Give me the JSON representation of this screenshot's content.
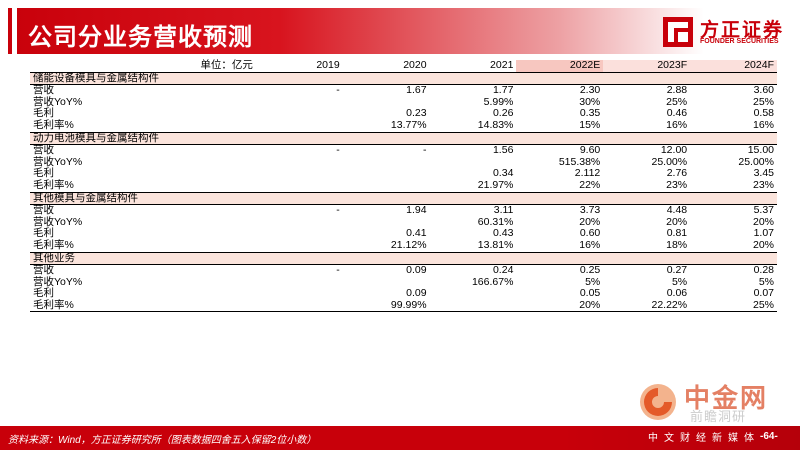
{
  "header": {
    "title": "公司分业务营收预测",
    "logo_cn": "方正证券",
    "logo_en": "FOUNDER SECURITIES",
    "brand_color": "#c8000a"
  },
  "table": {
    "unit_label": "单位：亿元",
    "years": [
      "2019",
      "2020",
      "2021",
      "2022E",
      "2023F",
      "2024F"
    ],
    "sections": [
      {
        "name": "储能设备模具与金属结构件",
        "rows": [
          {
            "label": "营收",
            "values": [
              "-",
              "1.67",
              "1.77",
              "2.30",
              "2.88",
              "3.60"
            ]
          },
          {
            "label": "营收YoY%",
            "values": [
              "",
              "",
              "5.99%",
              "30%",
              "25%",
              "25%"
            ]
          },
          {
            "label": "毛利",
            "values": [
              "",
              "0.23",
              "0.26",
              "0.35",
              "0.46",
              "0.58"
            ]
          },
          {
            "label": "毛利率%",
            "values": [
              "",
              "13.77%",
              "14.83%",
              "15%",
              "16%",
              "16%"
            ]
          }
        ]
      },
      {
        "name": "动力电池模具与金属结构件",
        "rows": [
          {
            "label": "营收",
            "values": [
              "-",
              "-",
              "1.56",
              "9.60",
              "12.00",
              "15.00"
            ]
          },
          {
            "label": "营收YoY%",
            "values": [
              "",
              "",
              "",
              "515.38%",
              "25.00%",
              "25.00%"
            ]
          },
          {
            "label": "毛利",
            "values": [
              "",
              "",
              "0.34",
              "2.112",
              "2.76",
              "3.45"
            ]
          },
          {
            "label": "毛利率%",
            "values": [
              "",
              "",
              "21.97%",
              "22%",
              "23%",
              "23%"
            ]
          }
        ]
      },
      {
        "name": "其他模具与金属结构件",
        "rows": [
          {
            "label": "营收",
            "values": [
              "-",
              "1.94",
              "3.11",
              "3.73",
              "4.48",
              "5.37"
            ]
          },
          {
            "label": "营收YoY%",
            "values": [
              "",
              "",
              "60.31%",
              "20%",
              "20%",
              "20%"
            ]
          },
          {
            "label": "毛利",
            "values": [
              "",
              "0.41",
              "0.43",
              "0.60",
              "0.81",
              "1.07"
            ]
          },
          {
            "label": "毛利率%",
            "values": [
              "",
              "21.12%",
              "13.81%",
              "16%",
              "18%",
              "20%"
            ]
          }
        ]
      },
      {
        "name": "其他业务",
        "rows": [
          {
            "label": "营收",
            "values": [
              "-",
              "0.09",
              "0.24",
              "0.25",
              "0.27",
              "0.28"
            ]
          },
          {
            "label": "营收YoY%",
            "values": [
              "",
              "",
              "166.67%",
              "5%",
              "5%",
              "5%"
            ]
          },
          {
            "label": "毛利",
            "values": [
              "",
              "0.09",
              "",
              "0.05",
              "0.06",
              "0.07"
            ]
          },
          {
            "label": "毛利率%",
            "values": [
              "",
              "99.99%",
              "",
              "20%",
              "22.22%",
              "25%"
            ]
          }
        ]
      }
    ]
  },
  "footer": {
    "source": "资料来源：Wind，方正证券研究所（图表数据四舍五入保留2位小数）",
    "page": "-64-"
  },
  "watermark": {
    "big": "中金网",
    "small": "前瞻洞研",
    "tag": "中文财经新媒体"
  }
}
